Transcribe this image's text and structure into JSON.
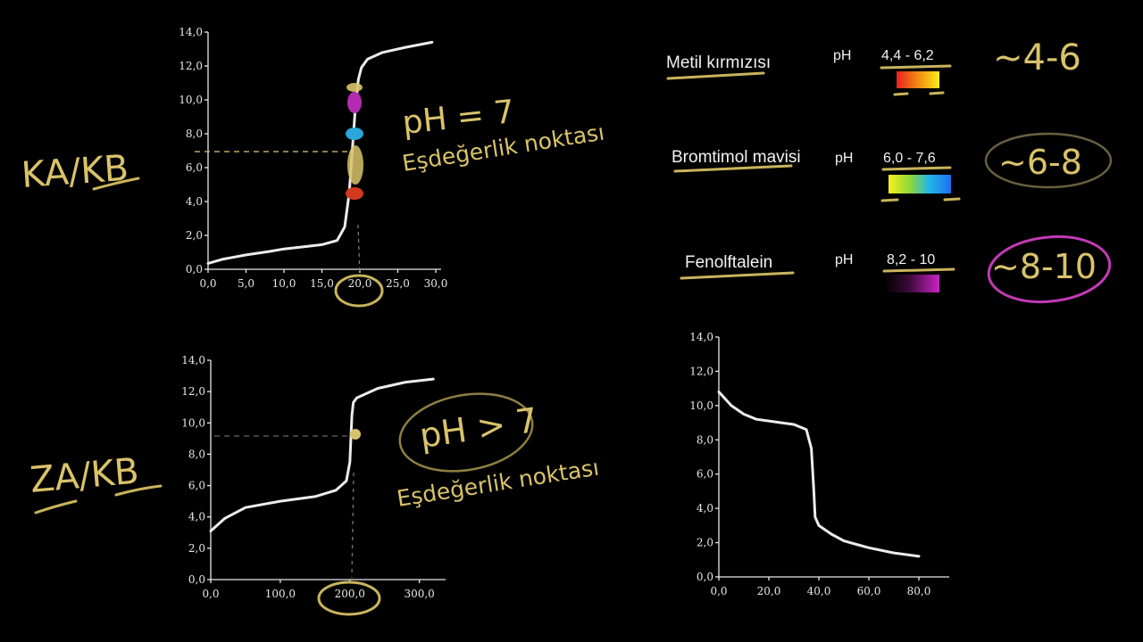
{
  "colors": {
    "background": "#000000",
    "curve": "#ececec",
    "handwriting": "#d9c36a",
    "magenta": "#c23ab5"
  },
  "chart_data": [
    {
      "type": "line",
      "x_ticks": [
        "0,0",
        "5,0",
        "10,0",
        "15,0",
        "20,0",
        "25,0",
        "30,0"
      ],
      "y_ticks": [
        "0,0",
        "2,0",
        "4,0",
        "6,0",
        "8,0",
        "10,0",
        "12,0",
        "14,0"
      ],
      "xlim": [
        0,
        30
      ],
      "ylim": [
        0,
        14
      ],
      "series": [
        {
          "x": [
            0,
            2,
            5,
            8,
            10,
            13,
            15,
            17,
            18,
            18.6,
            19,
            19.4,
            19.8,
            20.2,
            21,
            23,
            26,
            29.5
          ],
          "y": [
            0.35,
            0.6,
            0.85,
            1.05,
            1.2,
            1.35,
            1.45,
            1.7,
            2.5,
            4.5,
            7.0,
            9.5,
            11.2,
            11.9,
            12.4,
            12.8,
            13.1,
            13.4
          ]
        }
      ],
      "equivalence_x": 20,
      "equivalence_y": 7,
      "annotations": [
        "KA/KB",
        "pH = 7",
        "Eşdeğerlik noktası"
      ]
    },
    {
      "type": "line",
      "x_ticks": [
        "0,0",
        "100,0",
        "200,0",
        "300,0"
      ],
      "y_ticks": [
        "0,0",
        "2,0",
        "4,0",
        "6,0",
        "8,0",
        "10,0",
        "12,0",
        "14,0"
      ],
      "xlim": [
        0,
        330
      ],
      "ylim": [
        0,
        14
      ],
      "series": [
        {
          "x": [
            0,
            20,
            50,
            100,
            150,
            180,
            195,
            200,
            203,
            205,
            210,
            240,
            280,
            320
          ],
          "y": [
            3.1,
            3.9,
            4.6,
            5.0,
            5.3,
            5.7,
            6.3,
            7.5,
            10.5,
            11.3,
            11.6,
            12.2,
            12.6,
            12.8
          ]
        }
      ],
      "equivalence_x": 205,
      "equivalence_y": 9,
      "annotations": [
        "ZA/KB",
        "pH > 7",
        "Eşdeğerlik noktası"
      ]
    },
    {
      "type": "line",
      "x_ticks": [
        "0,0",
        "20,0",
        "40,0",
        "60,0",
        "80,0"
      ],
      "y_ticks": [
        "0,0",
        "2,0",
        "4,0",
        "6,0",
        "8,0",
        "10,0",
        "12,0",
        "14,0"
      ],
      "xlim": [
        0,
        90
      ],
      "ylim": [
        0,
        14
      ],
      "series": [
        {
          "x": [
            0,
            5,
            10,
            15,
            20,
            25,
            30,
            35,
            37,
            38,
            38.5,
            40,
            45,
            50,
            55,
            60,
            70,
            80
          ],
          "y": [
            10.8,
            10.0,
            9.5,
            9.2,
            9.1,
            9.0,
            8.9,
            8.6,
            7.5,
            5.0,
            3.5,
            3.0,
            2.5,
            2.1,
            1.9,
            1.7,
            1.4,
            1.2
          ]
        }
      ]
    }
  ],
  "indicators": [
    {
      "name": "Metil kırmızısı",
      "ph_label": "pH",
      "range": "4,4 - 6,2",
      "note": "~4-6"
    },
    {
      "name": "Bromtimol mavisi",
      "ph_label": "pH",
      "range": "6,0 - 7,6",
      "note": "~6-8"
    },
    {
      "name": "Fenolftalein",
      "ph_label": "pH",
      "range": "8,2 - 10",
      "note": "~8-10"
    }
  ]
}
